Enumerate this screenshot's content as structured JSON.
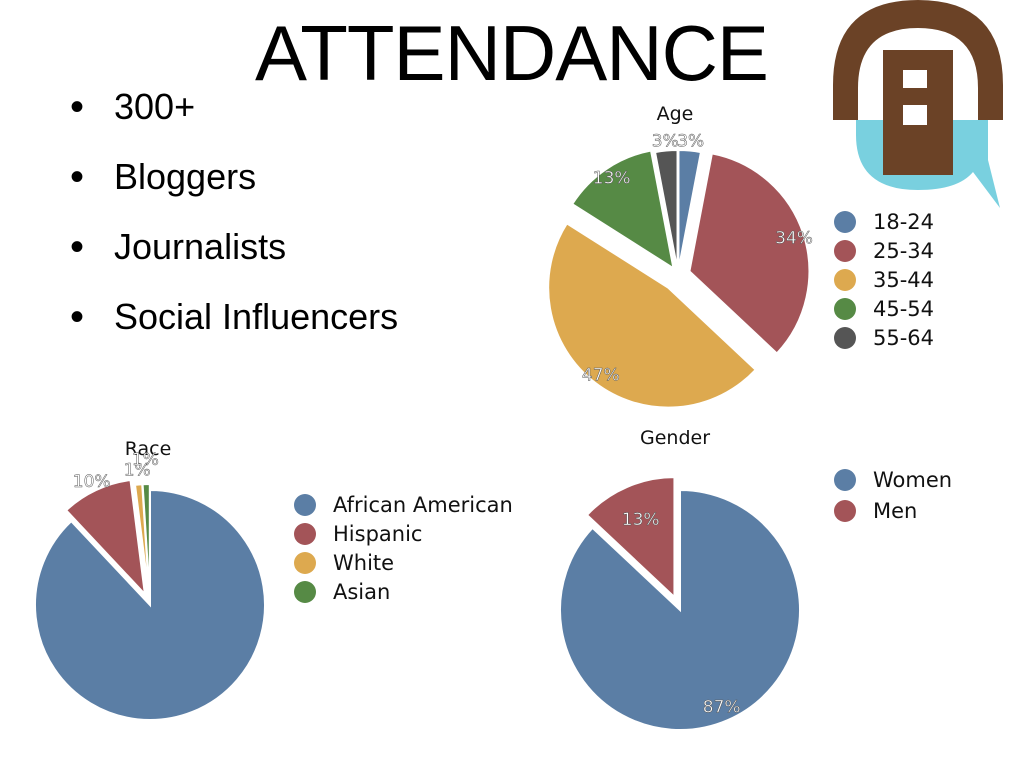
{
  "title": "ATTENDANCE",
  "bullets": [
    "300+",
    "Bloggers",
    "Journalists",
    "Social Influencers"
  ],
  "colors": {
    "blue": "#5b7ea5",
    "red": "#a35458",
    "gold": "#dda94f",
    "green": "#568a45",
    "gray": "#555555",
    "logo_brown": "#6b4226",
    "logo_teal": "#79d0df"
  },
  "chart_data": [
    {
      "type": "pie",
      "title": "Age",
      "labels": [
        "18-24",
        "25-34",
        "35-44",
        "45-54",
        "55-64"
      ],
      "values": [
        3,
        34,
        47,
        13,
        3
      ],
      "data_labels": [
        "3%",
        "34%",
        "47%",
        "13%",
        "3%"
      ],
      "colors": [
        "#5b7ea5",
        "#a35458",
        "#dda94f",
        "#568a45",
        "#555555"
      ],
      "legend": "right"
    },
    {
      "type": "pie",
      "title": "Race",
      "labels": [
        "African American",
        "Hispanic",
        "White",
        "Asian"
      ],
      "values": [
        88,
        10,
        1,
        1
      ],
      "data_labels": [
        "",
        "10%",
        "1%",
        "1%"
      ],
      "colors": [
        "#5b7ea5",
        "#a35458",
        "#dda94f",
        "#568a45"
      ],
      "legend": "right"
    },
    {
      "type": "pie",
      "title": "Gender",
      "labels": [
        "Women",
        "Men"
      ],
      "values": [
        87,
        13
      ],
      "data_labels": [
        "87%",
        "13%"
      ],
      "colors": [
        "#5b7ea5",
        "#a35458"
      ],
      "legend": "right"
    }
  ]
}
